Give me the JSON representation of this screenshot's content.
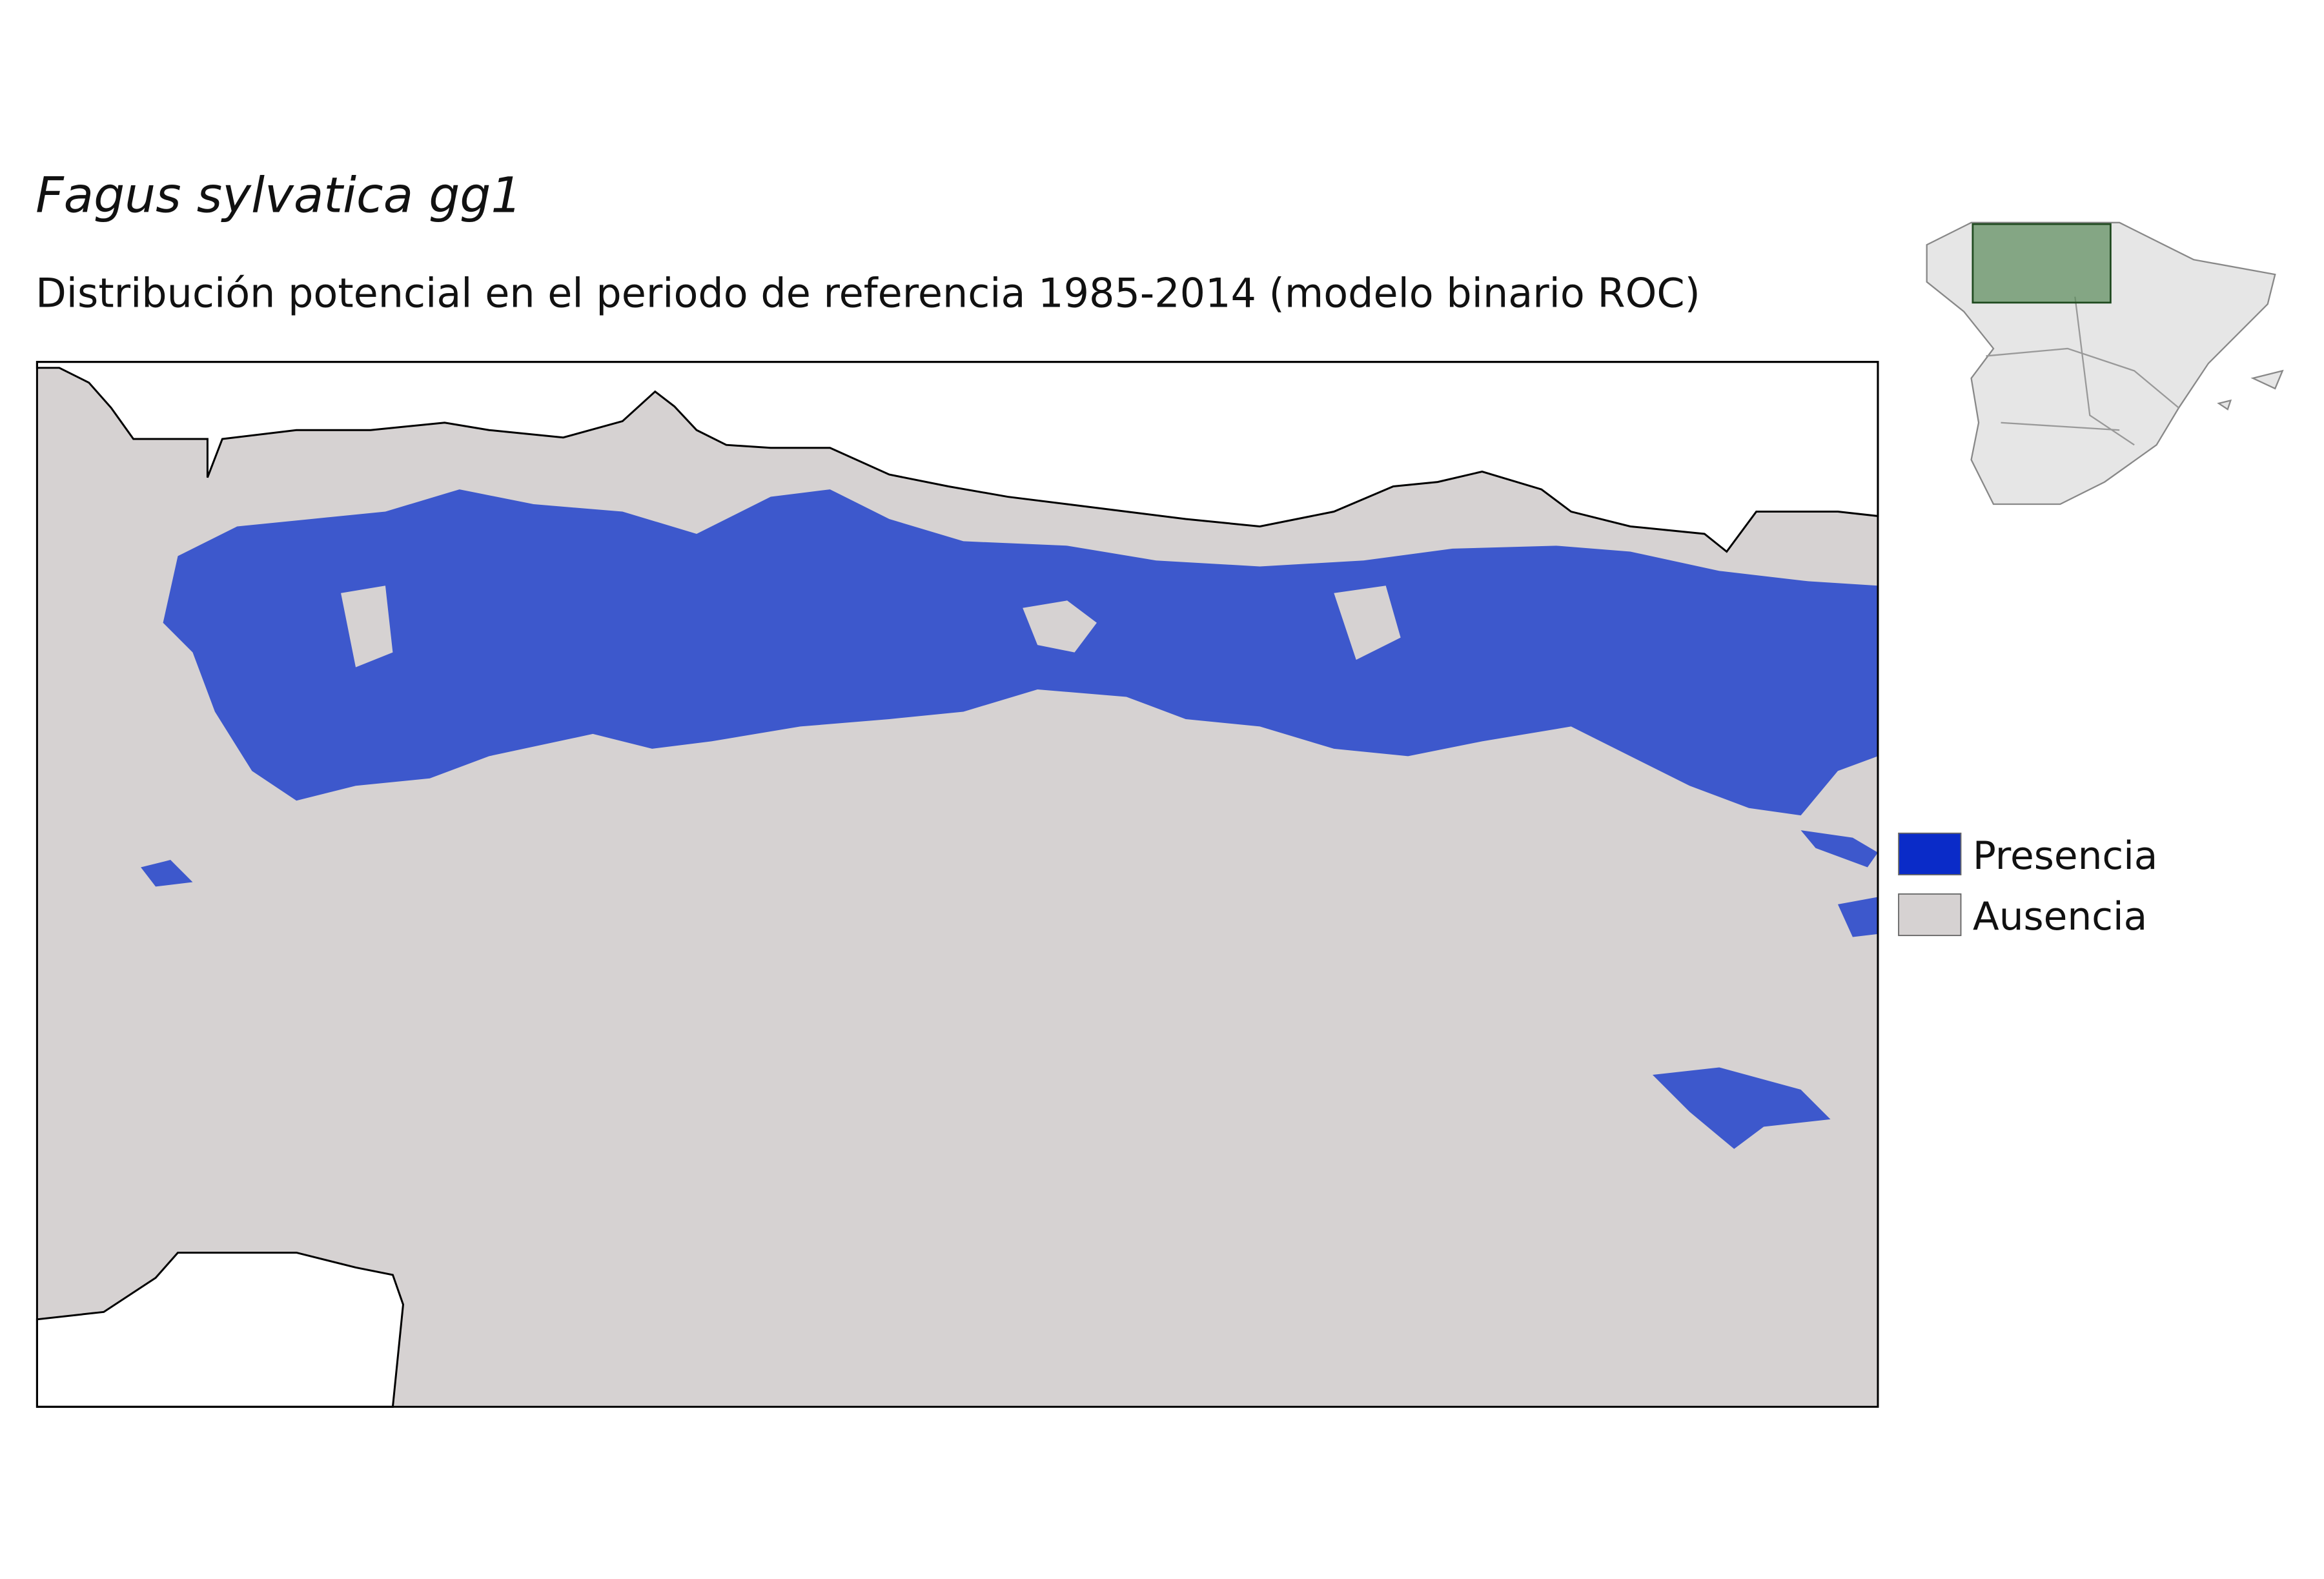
{
  "header": {
    "title": "Fagus sylvatica gg1",
    "subtitle": "Distribución potencial en el periodo de referencia 1985-2014 (modelo binario ROC)"
  },
  "legend": {
    "items": [
      {
        "label": "Presencia",
        "color": "#0a2bc8"
      },
      {
        "label": "Ausencia",
        "color": "#d6d2d2"
      }
    ]
  }
}
